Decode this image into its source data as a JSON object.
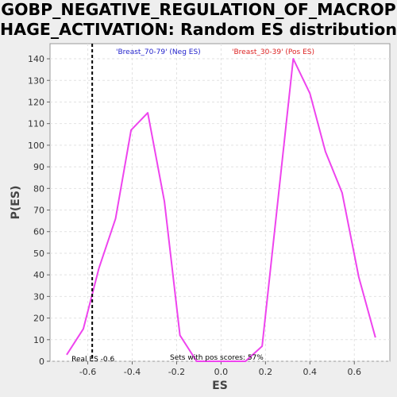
{
  "chart_data": {
    "type": "line",
    "title_line1": "GOBP_NEGATIVE_REGULATION_OF_MACROP",
    "title_line2": "HAGE_ACTIVATION: Random ES distribution",
    "xlabel": "ES",
    "ylabel": "P(ES)",
    "xlim": [
      -0.77,
      0.76
    ],
    "ylim": [
      0,
      147
    ],
    "xticks": [
      -0.6,
      -0.4,
      -0.2,
      0.0,
      0.2,
      0.4,
      0.6
    ],
    "xtick_labels": [
      "-0.6",
      "-0.4",
      "-0.2",
      "0.0",
      "0.2",
      "0.4",
      "0.6"
    ],
    "yticks": [
      0,
      10,
      20,
      30,
      40,
      50,
      60,
      70,
      80,
      90,
      100,
      110,
      120,
      130,
      140
    ],
    "ytick_labels": [
      "0",
      "10",
      "20",
      "30",
      "40",
      "50",
      "60",
      "70",
      "80",
      "90",
      "100",
      "110",
      "120",
      "130",
      "140"
    ],
    "grid": true,
    "legend": [
      {
        "label": "'Breast_70-79' (Neg ES)",
        "color": "#2222cc"
      },
      {
        "label": "'Breast_30-39' (Pos ES)",
        "color": "#dd2222"
      }
    ],
    "series": [
      {
        "color": "#ee44ee",
        "x": [
          -0.695,
          -0.62,
          -0.55,
          -0.475,
          -0.405,
          -0.33,
          -0.255,
          -0.185,
          -0.11,
          -0.035,
          0.04,
          0.11,
          0.185,
          0.325,
          0.4,
          0.47,
          0.545,
          0.62,
          0.695
        ],
        "y": [
          3,
          15,
          43,
          66,
          107,
          115,
          74,
          12,
          0,
          0,
          0,
          0,
          7,
          140,
          124,
          97,
          78,
          39,
          11
        ]
      }
    ],
    "real_es": -0.58,
    "real_es_label": "Real ES -0.6",
    "pos_scores_label": "Sets with pos scores: 57%"
  }
}
